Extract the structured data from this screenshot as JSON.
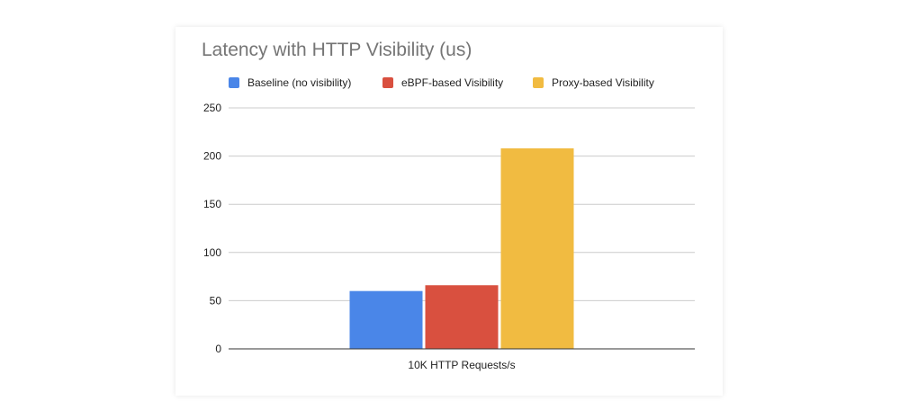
{
  "chart_data": {
    "type": "bar",
    "title": "Latency with HTTP Visibility (us)",
    "categories": [
      "10K HTTP Requests/s"
    ],
    "series": [
      {
        "name": "Baseline (no visibility)",
        "values": [
          60
        ],
        "color": "#4a86e8"
      },
      {
        "name": "eBPF-based Visibility",
        "values": [
          66
        ],
        "color": "#d9503f"
      },
      {
        "name": "Proxy-based Visibility",
        "values": [
          208
        ],
        "color": "#f1bb41"
      }
    ],
    "yticks": [
      "0",
      "50",
      "100",
      "150",
      "200",
      "250"
    ],
    "ylim": [
      0,
      250
    ],
    "grid": true,
    "legend_position": "top"
  }
}
